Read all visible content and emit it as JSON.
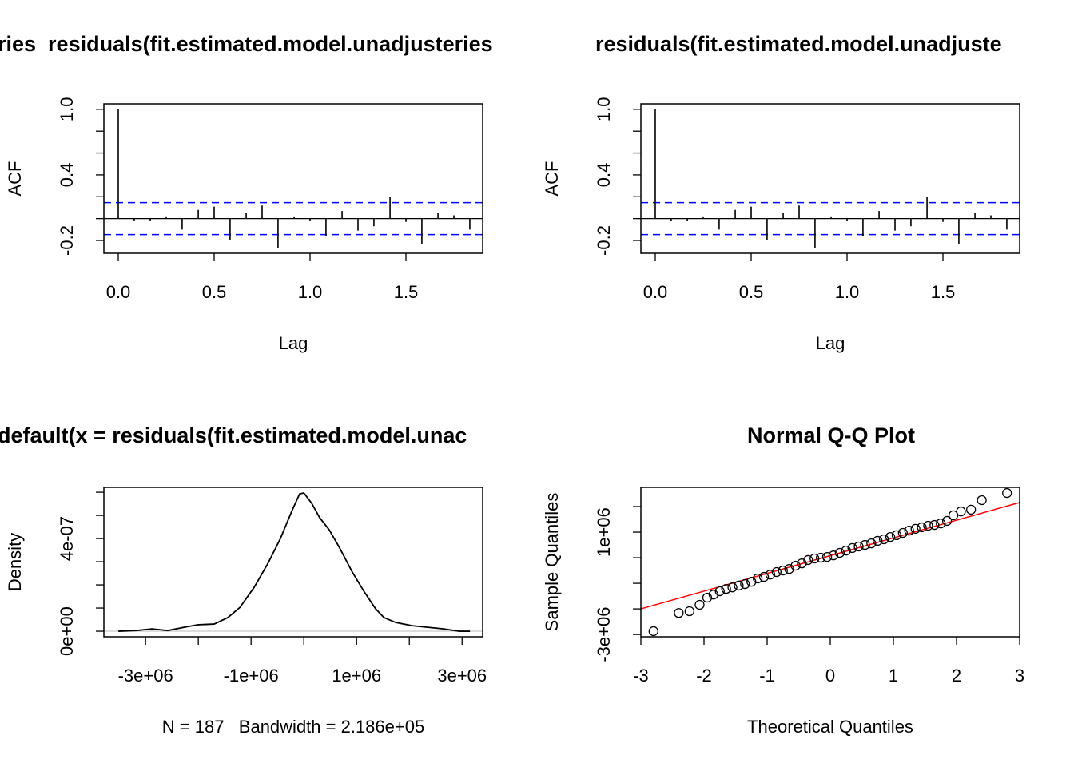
{
  "chart_data": [
    {
      "type": "acf",
      "title": "ries  residuals(fit.estimated.model.unadjusteries",
      "xlabel": "Lag",
      "ylabel": "ACF",
      "x": [
        0,
        0.083,
        0.167,
        0.25,
        0.333,
        0.417,
        0.5,
        0.583,
        0.667,
        0.75,
        0.833,
        0.917,
        1,
        1.083,
        1.167,
        1.25,
        1.333,
        1.417,
        1.5,
        1.583,
        1.667,
        1.75,
        1.833
      ],
      "values": [
        1.0,
        -0.02,
        -0.02,
        0.02,
        -0.1,
        0.08,
        0.11,
        -0.2,
        0.05,
        0.12,
        -0.27,
        0.02,
        -0.02,
        -0.16,
        0.07,
        -0.11,
        -0.07,
        0.2,
        -0.03,
        -0.23,
        0.05,
        0.03,
        -0.1
      ],
      "color": "#000000",
      "ci": [
        0.146,
        -0.146
      ],
      "ci_color": "#0000ff",
      "xlim": [
        -0.075,
        1.9
      ],
      "xticks": [
        {
          "value": 0,
          "label": "0.0"
        },
        0.5,
        {
          "value": 1,
          "label": "1.0"
        },
        1.5
      ],
      "ylim": [
        -0.317,
        1.05
      ],
      "yticks": [
        -0.2,
        0.4,
        {
          "value": 1,
          "label": "1.0"
        }
      ],
      "minor_yticks": [
        0,
        0.2,
        0.6,
        0.8
      ]
    },
    {
      "type": "acf",
      "title": "residuals(fit.estimated.model.unadjuste",
      "xlabel": "Lag",
      "ylabel": "ACF",
      "x": [
        0,
        0.083,
        0.167,
        0.25,
        0.333,
        0.417,
        0.5,
        0.583,
        0.667,
        0.75,
        0.833,
        0.917,
        1,
        1.083,
        1.167,
        1.25,
        1.333,
        1.417,
        1.5,
        1.583,
        1.667,
        1.75,
        1.833
      ],
      "values": [
        1.0,
        -0.02,
        -0.02,
        0.02,
        -0.1,
        0.08,
        0.11,
        -0.2,
        0.05,
        0.12,
        -0.27,
        0.02,
        -0.02,
        -0.16,
        0.07,
        -0.11,
        -0.07,
        0.2,
        -0.03,
        -0.23,
        0.05,
        0.03,
        -0.1
      ],
      "color": "#000000",
      "ci": [
        0.146,
        -0.146
      ],
      "ci_color": "#0000ff",
      "xlim": [
        -0.075,
        1.9
      ],
      "xticks": [
        {
          "value": 0,
          "label": "0.0"
        },
        0.5,
        {
          "value": 1,
          "label": "1.0"
        },
        1.5
      ],
      "ylim": [
        -0.317,
        1.05
      ],
      "yticks": [
        -0.2,
        0.4,
        {
          "value": 1,
          "label": "1.0"
        }
      ],
      "minor_yticks": [
        0,
        0.2,
        0.6,
        0.8
      ]
    },
    {
      "type": "line",
      "title": "default(x = residuals(fit.estimated.model.unac",
      "xlabel": "N = 187   Bandwidth = 2.186e+05",
      "ylabel": "Density",
      "x": [
        -3515000,
        -3180000,
        -2880000,
        -2580000,
        -2270000,
        -2000000,
        -1700000,
        -1440000,
        -1210000,
        -940000,
        -680000,
        -450000,
        -230000,
        -80000,
        0,
        150000,
        300000,
        480000,
        680000,
        910000,
        1140000,
        1360000,
        1520000,
        1740000,
        2050000,
        2350000,
        2650000,
        2950000,
        3150000
      ],
      "values": [
        0,
        3e-09,
        1e-08,
        3e-09,
        1.7e-08,
        2.8e-08,
        3.1e-08,
        5.9e-08,
        1.03e-07,
        1.9e-07,
        2.93e-07,
        3.97e-07,
        5.17e-07,
        5.93e-07,
        5.97e-07,
        5.52e-07,
        4.9e-07,
        4.38e-07,
        3.59e-07,
        2.59e-07,
        1.72e-07,
        9.7e-08,
        5.9e-08,
        3.8e-08,
        2.4e-08,
        1.7e-08,
        1e-08,
        0,
        0
      ],
      "color": "#000000",
      "xlim": [
        -3790000,
        3390000
      ],
      "xticks": [
        {
          "value": -3000000,
          "label": "-3e+06"
        },
        {
          "value": -1000000,
          "label": "-1e+06"
        },
        {
          "value": 1000000,
          "label": "1e+06"
        },
        {
          "value": 3000000,
          "label": "3e+06"
        }
      ],
      "minor_xticks": [
        -2000000,
        0,
        2000000
      ],
      "ylim": [
        -2.4e-08,
        6.21e-07
      ],
      "yticks": [
        {
          "value": 0,
          "label": "0e+00"
        },
        {
          "value": 4e-07,
          "label": "4e-07"
        }
      ],
      "minor_yticks": [
        1e-07,
        2e-07,
        3e-07,
        5e-07,
        6e-07
      ]
    },
    {
      "type": "scatter",
      "title": "Normal Q-Q Plot",
      "xlabel": "Theoretical Quantiles",
      "ylabel": "Sample Quantiles",
      "x": [
        -2.8,
        -2.4,
        -2.23,
        -2.07,
        -1.95,
        -1.85,
        -1.75,
        -1.65,
        -1.55,
        -1.45,
        -1.35,
        -1.25,
        -1.15,
        -1.05,
        -0.95,
        -0.85,
        -0.75,
        -0.65,
        -0.55,
        -0.45,
        -0.35,
        -0.25,
        -0.15,
        -0.05,
        0.05,
        0.15,
        0.25,
        0.35,
        0.45,
        0.55,
        0.65,
        0.75,
        0.85,
        0.95,
        1.05,
        1.15,
        1.25,
        1.35,
        1.45,
        1.55,
        1.65,
        1.75,
        1.85,
        1.95,
        2.07,
        2.23,
        2.4,
        2.8
      ],
      "values": [
        -2870000,
        -2160000,
        -2090000,
        -1840000,
        -1560000,
        -1440000,
        -1310000,
        -1220000,
        -1160000,
        -1090000,
        -1030000,
        -940000,
        -810000,
        -750000,
        -660000,
        -560000,
        -500000,
        -440000,
        -310000,
        -220000,
        -90000,
        -30000,
        0,
        30000,
        90000,
        190000,
        280000,
        380000,
        440000,
        500000,
        560000,
        660000,
        720000,
        810000,
        880000,
        970000,
        1060000,
        1130000,
        1190000,
        1250000,
        1280000,
        1340000,
        1440000,
        1660000,
        1810000,
        1880000,
        2250000,
        2530000
      ],
      "color": "#000000",
      "line": {
        "intercept": 80000,
        "slope": 693000,
        "color": "#ff0000"
      },
      "xlim": [
        -3,
        3
      ],
      "xticks": [
        -3,
        -2,
        -1,
        0,
        1,
        2,
        3
      ],
      "ylim": [
        -3090000,
        2750000
      ],
      "yticks": [
        {
          "value": -3000000,
          "label": "-3e+06"
        },
        {
          "value": 1000000,
          "label": "1e+06"
        }
      ],
      "minor_yticks": [
        -2000000,
        -1000000,
        0,
        2000000
      ]
    }
  ]
}
